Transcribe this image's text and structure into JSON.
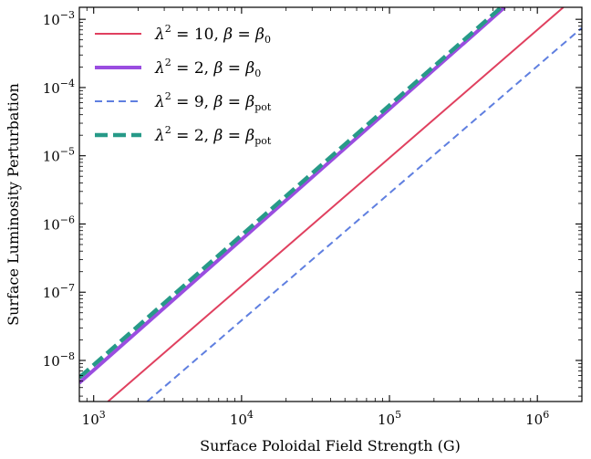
{
  "chart_data": {
    "type": "line",
    "title": "",
    "xlabel": "Surface Poloidal Field Strength (G)",
    "ylabel": "Surface Luminosity Perturbation",
    "xscale": "log",
    "yscale": "log",
    "xlim": [
      800,
      2000000
    ],
    "ylim": [
      2.5e-09,
      0.0015
    ],
    "grid": false,
    "legend_position": "top-left",
    "x_ticks": [
      {
        "base": "10",
        "exp": "3",
        "value": 1000
      },
      {
        "base": "10",
        "exp": "4",
        "value": 10000
      },
      {
        "base": "10",
        "exp": "5",
        "value": 100000
      },
      {
        "base": "10",
        "exp": "6",
        "value": 1000000
      }
    ],
    "y_ticks": [
      {
        "base": "10",
        "exp": "−8",
        "value": 1e-08
      },
      {
        "base": "10",
        "exp": "−7",
        "value": 1e-07
      },
      {
        "base": "10",
        "exp": "−6",
        "value": 1e-06
      },
      {
        "base": "10",
        "exp": "−5",
        "value": 1e-05
      },
      {
        "base": "10",
        "exp": "−4",
        "value": 0.0001
      },
      {
        "base": "10",
        "exp": "−3",
        "value": 0.001
      }
    ],
    "series": [
      {
        "key": "lam10-beta0",
        "legend": {
          "lam": "λ",
          "sq": "2",
          "eq": " = 10, ",
          "beta": "β",
          "eq2": " = ",
          "beta2": "β",
          "sub": "0"
        },
        "color": "#e0405f",
        "dash": "none",
        "width": 2,
        "x": [
          1250,
          1500000
        ],
        "y": [
          2.5e-09,
          0.0015
        ]
      },
      {
        "key": "lam2-beta0",
        "legend": {
          "lam": "λ",
          "sq": "2",
          "eq": " = 2, ",
          "beta": "β",
          "eq2": " = ",
          "beta2": "β",
          "sub": "0"
        },
        "color": "#9a4de0",
        "dash": "none",
        "width": 4,
        "x": [
          800,
          600000
        ],
        "y": [
          4.7e-09,
          0.0015
        ]
      },
      {
        "key": "lam9-betapot",
        "legend": {
          "lam": "λ",
          "sq": "2",
          "eq": " = 9, ",
          "beta": "β",
          "eq2": " = ",
          "beta2": "β",
          "sub": "pot"
        },
        "color": "#5f7fe0",
        "dash": "8,5",
        "width": 2,
        "x": [
          2300,
          2000000
        ],
        "y": [
          2.5e-09,
          0.00075
        ]
      },
      {
        "key": "lam2-betapot",
        "legend": {
          "lam": "λ",
          "sq": "2",
          "eq": " = 2, ",
          "beta": "β",
          "eq2": " = ",
          "beta2": "β",
          "sub": "pot"
        },
        "color": "#279a88",
        "dash": "14,6",
        "width": 4.5,
        "x": [
          800,
          570000
        ],
        "y": [
          5.6e-09,
          0.0015
        ]
      }
    ]
  }
}
